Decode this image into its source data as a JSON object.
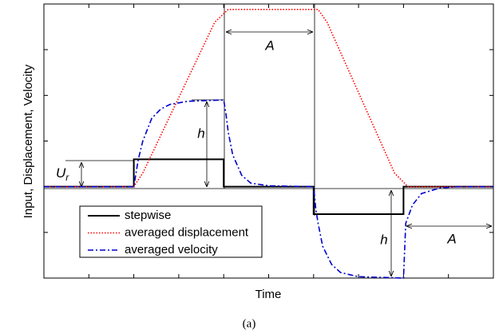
{
  "chart_data": {
    "type": "line",
    "xlabel": "Time",
    "ylabel": "Input, Displacement, Velocity",
    "caption": "(a)",
    "xlim": [
      0,
      10
    ],
    "ylim": [
      -2,
      4
    ],
    "xticks": [
      1,
      2,
      3,
      4,
      5,
      6,
      7,
      8,
      9
    ],
    "yticks": [
      -1,
      0,
      1,
      2,
      3
    ],
    "legend": "lower left",
    "series": [
      {
        "name": "stepwise",
        "color": "#000000",
        "dash": "solid",
        "x": [
          0,
          2,
          2,
          4,
          4,
          6,
          6,
          8,
          8,
          10
        ],
        "values": [
          0,
          0,
          0.6,
          0.6,
          0,
          0,
          -0.6,
          -0.6,
          0,
          0
        ]
      },
      {
        "name": "averaged displacement",
        "color": "#ff0000",
        "dash": "dotted",
        "x": [
          0,
          2,
          2.2,
          3.8,
          4.1,
          6.1,
          6.3,
          7.8,
          8.1,
          10
        ],
        "values": [
          0,
          0,
          0.3,
          3.6,
          3.88,
          3.88,
          3.6,
          0.3,
          0,
          0
        ]
      },
      {
        "name": "averaged velocity",
        "color": "#0000cc",
        "dash": "dashdot",
        "x": [
          0,
          2,
          2.1,
          2.2,
          2.4,
          2.6,
          2.8,
          3.2,
          4,
          4.05,
          4.1,
          4.2,
          4.4,
          4.6,
          5,
          6,
          6.05,
          6.1,
          6.2,
          6.4,
          6.6,
          7,
          8,
          8.05,
          8.2,
          8.4,
          8.8,
          9.2,
          10
        ],
        "values": [
          0,
          0,
          0.6,
          1.0,
          1.5,
          1.7,
          1.8,
          1.87,
          1.9,
          1.6,
          1.2,
          0.7,
          0.25,
          0.08,
          0.02,
          0,
          -0.5,
          -0.8,
          -1.3,
          -1.7,
          -1.88,
          -1.97,
          -2,
          -0.8,
          -0.4,
          -0.15,
          -0.03,
          0,
          0
        ]
      }
    ],
    "annotations": [
      {
        "text": "A"
      },
      {
        "text": "h"
      },
      {
        "text": "U",
        "subscript": "r"
      },
      {
        "text": "h"
      },
      {
        "text": "A"
      }
    ]
  }
}
